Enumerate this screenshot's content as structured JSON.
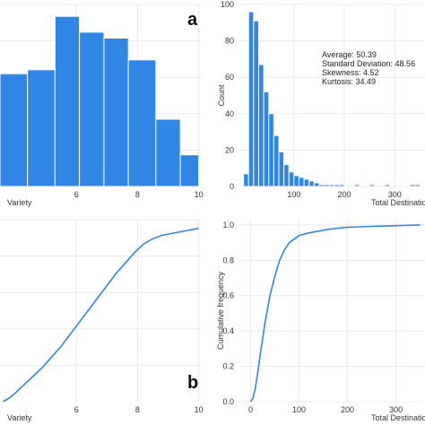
{
  "panel_letters": {
    "a": "a",
    "b": "b"
  },
  "stats_lines": [
    "Average: 50.39",
    "Standard Deviation: 48.56",
    "Skewness: 4.52",
    "Kurtosis: 34.49"
  ],
  "chart_data": [
    {
      "type": "bar",
      "panel": "top-left",
      "xlabel": "Variety",
      "ylabel": "",
      "bin_edges": [
        3.5,
        4.4,
        5.3,
        6.1,
        6.9,
        7.7,
        8.6,
        9.4,
        10.0
      ],
      "values": [
        57,
        59,
        86,
        78,
        75,
        64,
        34,
        16
      ],
      "xlim": [
        3.5,
        10.1
      ],
      "ylim": [
        0,
        92
      ],
      "x_ticks": [
        6,
        8,
        10
      ],
      "color": "#2f86e4",
      "grid": true
    },
    {
      "type": "bar",
      "panel": "top-right",
      "xlabel": "Total Destination",
      "ylabel": "Count",
      "bin_edges": [
        0,
        10,
        20,
        30,
        40,
        50,
        60,
        70,
        80,
        90,
        100,
        110,
        120,
        130,
        140,
        150,
        160,
        170,
        180,
        190,
        200,
        210,
        220,
        230,
        240,
        250,
        260,
        270,
        280,
        290,
        300,
        310,
        320,
        330,
        340,
        350
      ],
      "values": [
        7,
        96,
        91,
        67,
        52,
        40,
        28,
        19,
        12,
        8,
        6,
        5,
        4,
        3,
        2,
        1,
        1,
        1,
        1,
        1,
        0,
        0,
        1,
        0,
        0,
        1,
        0,
        0,
        1,
        0,
        0,
        0,
        0,
        1,
        1
      ],
      "xlim": [
        -10,
        360
      ],
      "ylim": [
        0,
        100
      ],
      "x_ticks": [
        100,
        200,
        300
      ],
      "y_ticks": [
        0,
        20,
        40,
        60,
        80,
        100
      ],
      "color": "#2f86e4",
      "grid": true
    },
    {
      "type": "line",
      "panel": "bottom-left",
      "xlabel": "Variety",
      "ylabel": "",
      "x": [
        3.6,
        3.8,
        4.0,
        4.3,
        4.6,
        4.9,
        5.2,
        5.5,
        5.8,
        6.1,
        6.4,
        6.7,
        7.0,
        7.3,
        7.6,
        7.9,
        8.2,
        8.5,
        8.8,
        9.1,
        9.4,
        9.7,
        10.0
      ],
      "y": [
        0.0,
        0.02,
        0.05,
        0.1,
        0.15,
        0.2,
        0.26,
        0.32,
        0.39,
        0.46,
        0.53,
        0.6,
        0.67,
        0.74,
        0.8,
        0.86,
        0.91,
        0.94,
        0.96,
        0.97,
        0.98,
        0.99,
        1.0
      ],
      "xlim": [
        3.5,
        10.1
      ],
      "ylim": [
        0,
        1.05
      ],
      "x_ticks": [
        6,
        8,
        10
      ],
      "color": "#2f86e4",
      "grid": true
    },
    {
      "type": "line",
      "panel": "bottom-right",
      "xlabel": "Total Destination",
      "ylabel": "Cumulative frequency",
      "x": [
        0,
        5,
        10,
        15,
        20,
        30,
        40,
        50,
        60,
        70,
        80,
        90,
        100,
        120,
        140,
        160,
        180,
        200,
        250,
        300,
        350
      ],
      "y": [
        0.0,
        0.02,
        0.08,
        0.17,
        0.27,
        0.45,
        0.6,
        0.71,
        0.8,
        0.86,
        0.9,
        0.92,
        0.94,
        0.955,
        0.965,
        0.975,
        0.982,
        0.987,
        0.992,
        0.996,
        1.0
      ],
      "xlim": [
        -25,
        360
      ],
      "ylim": [
        0,
        1.03
      ],
      "x_ticks": [
        0,
        100,
        200,
        300
      ],
      "y_ticks": [
        0.0,
        0.2,
        0.4,
        0.6,
        0.8,
        1.0
      ],
      "color": "#2f86e4",
      "grid": true
    }
  ]
}
